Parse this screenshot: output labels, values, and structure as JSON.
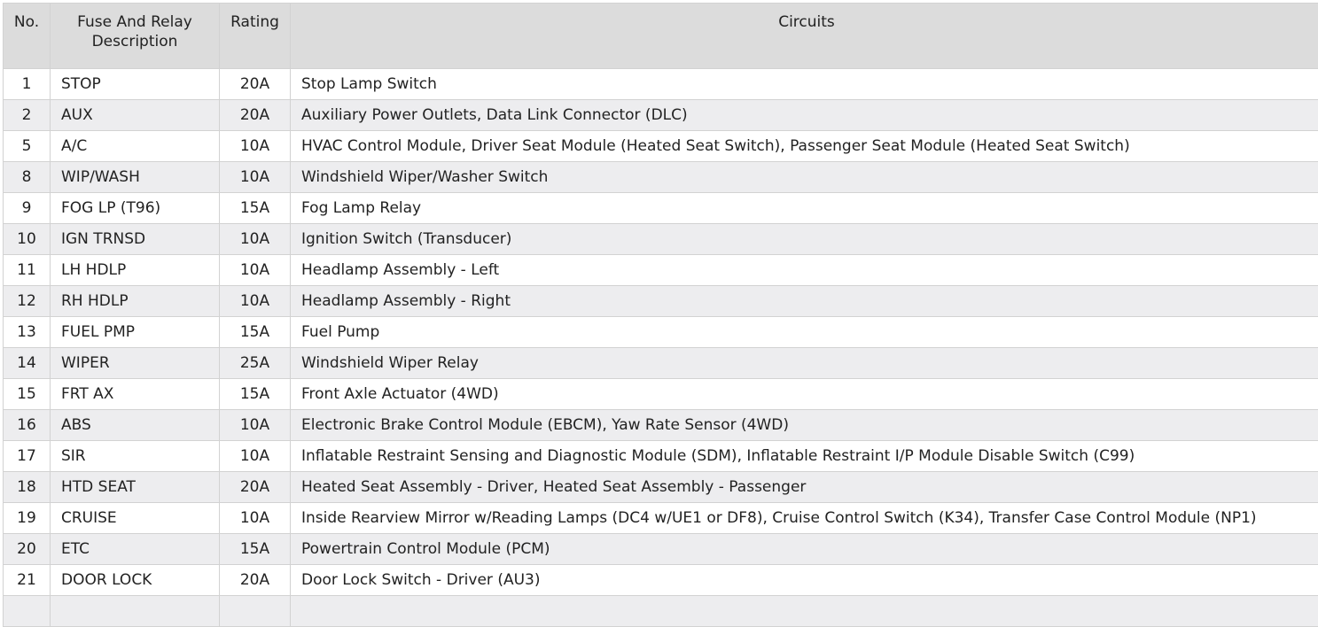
{
  "table": {
    "headers": [
      "No.",
      "Fuse And Relay Description",
      "Rating",
      "Circuits"
    ],
    "rows": [
      {
        "no": "1",
        "desc": "STOP",
        "rating": "20A",
        "circuits": "Stop Lamp Switch"
      },
      {
        "no": "2",
        "desc": "AUX",
        "rating": "20A",
        "circuits": "Auxiliary Power Outlets, Data Link Connector (DLC)"
      },
      {
        "no": "5",
        "desc": "A/C",
        "rating": "10A",
        "circuits": "HVAC Control Module, Driver Seat Module (Heated Seat Switch), Passenger Seat Module (Heated Seat Switch)"
      },
      {
        "no": "8",
        "desc": "WIP/WASH",
        "rating": "10A",
        "circuits": "Windshield Wiper/Washer Switch"
      },
      {
        "no": "9",
        "desc": "FOG LP (T96)",
        "rating": "15A",
        "circuits": "Fog Lamp Relay"
      },
      {
        "no": "10",
        "desc": "IGN TRNSD",
        "rating": "10A",
        "circuits": "Ignition Switch (Transducer)"
      },
      {
        "no": "11",
        "desc": "LH HDLP",
        "rating": "10A",
        "circuits": "Headlamp Assembly - Left"
      },
      {
        "no": "12",
        "desc": "RH HDLP",
        "rating": "10A",
        "circuits": "Headlamp Assembly - Right"
      },
      {
        "no": "13",
        "desc": "FUEL PMP",
        "rating": "15A",
        "circuits": "Fuel Pump"
      },
      {
        "no": "14",
        "desc": "WIPER",
        "rating": "25A",
        "circuits": "Windshield Wiper Relay"
      },
      {
        "no": "15",
        "desc": "FRT AX",
        "rating": "15A",
        "circuits": "Front Axle Actuator (4WD)"
      },
      {
        "no": "16",
        "desc": "ABS",
        "rating": "10A",
        "circuits": "Electronic Brake Control Module (EBCM), Yaw Rate Sensor (4WD)"
      },
      {
        "no": "17",
        "desc": "SIR",
        "rating": "10A",
        "circuits": "Inflatable Restraint Sensing and Diagnostic Module (SDM), Inflatable Restraint I/P Module Disable Switch (C99)"
      },
      {
        "no": "18",
        "desc": "HTD SEAT",
        "rating": "20A",
        "circuits": "Heated Seat Assembly - Driver, Heated Seat Assembly - Passenger"
      },
      {
        "no": "19",
        "desc": "CRUISE",
        "rating": "10A",
        "circuits": "Inside Rearview Mirror w/Reading Lamps (DC4 w/UE1 or DF8), Cruise Control Switch (K34), Transfer Case Control Module (NP1)"
      },
      {
        "no": "20",
        "desc": "ETC",
        "rating": "15A",
        "circuits": "Powertrain Control Module (PCM)"
      },
      {
        "no": "21",
        "desc": "DOOR LOCK",
        "rating": "20A",
        "circuits": "Door Lock Switch - Driver (AU3)"
      },
      {
        "no": "",
        "desc": "",
        "rating": "",
        "circuits": ""
      }
    ]
  }
}
